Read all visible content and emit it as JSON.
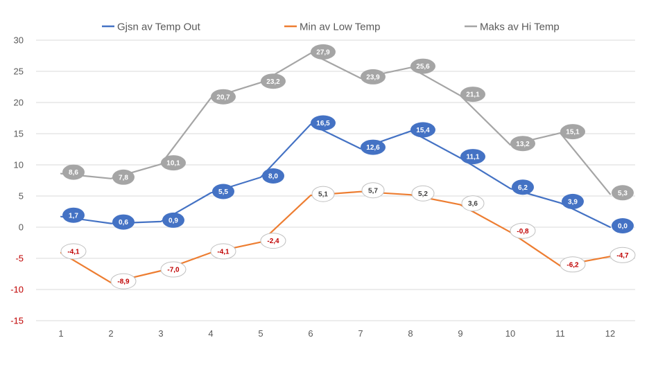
{
  "chart_data": {
    "type": "line",
    "categories": [
      "1",
      "2",
      "3",
      "4",
      "5",
      "6",
      "7",
      "8",
      "9",
      "10",
      "11",
      "12"
    ],
    "ylim": [
      -15,
      30
    ],
    "y_ticks": [
      30,
      25,
      20,
      15,
      10,
      5,
      0,
      -5,
      -10,
      -15
    ],
    "grid": true,
    "legend_position": "top",
    "negative_tick_color": "#c00000",
    "series": [
      {
        "name": "Gjsn av Temp Out",
        "color": "#4472c4",
        "label_style": "filled",
        "values": [
          1.7,
          0.6,
          0.9,
          5.5,
          8.0,
          16.5,
          12.6,
          15.4,
          11.1,
          6.2,
          3.9,
          0.0
        ],
        "labels": [
          "1,7",
          "0,6",
          "0,9",
          "5,5",
          "8,0",
          "16,5",
          "12,6",
          "15,4",
          "11,1",
          "6,2",
          "3,9",
          "0,0"
        ]
      },
      {
        "name": "Min av Low Temp",
        "color": "#ed7d31",
        "label_style": "outlined",
        "values": [
          -4.1,
          -8.9,
          -7.0,
          -4.1,
          -2.4,
          5.1,
          5.7,
          5.2,
          3.6,
          -0.8,
          -6.2,
          -4.7
        ],
        "labels": [
          "-4,1",
          "-8,9",
          "-7,0",
          "-4,1",
          "-2,4",
          "5,1",
          "5,7",
          "5,2",
          "3,6",
          "-0,8",
          "-6,2",
          "-4,7"
        ]
      },
      {
        "name": "Maks av Hi Temp",
        "color": "#a5a5a5",
        "label_style": "filled",
        "values": [
          8.6,
          7.8,
          10.1,
          20.7,
          23.2,
          27.9,
          23.9,
          25.6,
          21.1,
          13.2,
          15.1,
          5.3
        ],
        "labels": [
          "8,6",
          "7,8",
          "10,1",
          "20,7",
          "23,2",
          "27,9",
          "23,9",
          "25,6",
          "21,1",
          "13,2",
          "15,1",
          "5,3"
        ]
      }
    ]
  }
}
